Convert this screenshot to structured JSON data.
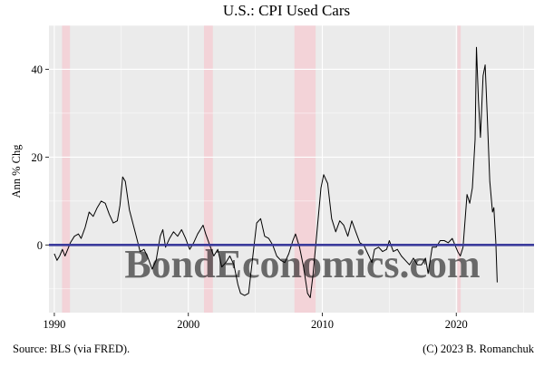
{
  "chart_data": {
    "type": "line",
    "title": "U.S.: CPI Used Cars",
    "xlabel": "",
    "ylabel": "Ann % Chg",
    "xlim": [
      1989.6,
      2025.8
    ],
    "ylim": [
      -15.4,
      50.0
    ],
    "x_ticks": [
      1990,
      2000,
      2010,
      2020
    ],
    "y_ticks": [
      0,
      20,
      40
    ],
    "x_tick_labels": [
      "1990",
      "2000",
      "2010",
      "2020"
    ],
    "y_tick_labels": [
      "0",
      "20",
      "40"
    ],
    "grid": true,
    "legend": "none",
    "reference_line": {
      "y": 0,
      "color": "#3b3b9c"
    },
    "recessions": [
      {
        "start": 1990.58,
        "end": 1991.17
      },
      {
        "start": 2001.17,
        "end": 2001.83
      },
      {
        "start": 2007.92,
        "end": 2009.5
      },
      {
        "start": 2020.08,
        "end": 2020.33
      }
    ],
    "series": [
      {
        "color": "#000000",
        "points": [
          [
            1990.0,
            -2.0
          ],
          [
            1990.2,
            -3.5
          ],
          [
            1990.4,
            -2.5
          ],
          [
            1990.6,
            -1.0
          ],
          [
            1990.8,
            -2.5
          ],
          [
            1991.0,
            -1.0
          ],
          [
            1991.2,
            0.5
          ],
          [
            1991.5,
            2.0
          ],
          [
            1991.8,
            2.5
          ],
          [
            1992.0,
            1.5
          ],
          [
            1992.3,
            4.0
          ],
          [
            1992.6,
            7.5
          ],
          [
            1992.9,
            6.5
          ],
          [
            1993.2,
            8.5
          ],
          [
            1993.5,
            10.0
          ],
          [
            1993.8,
            9.5
          ],
          [
            1994.1,
            7.0
          ],
          [
            1994.4,
            5.0
          ],
          [
            1994.7,
            5.5
          ],
          [
            1994.9,
            9.0
          ],
          [
            1995.1,
            15.5
          ],
          [
            1995.3,
            14.5
          ],
          [
            1995.6,
            8.0
          ],
          [
            1995.9,
            4.5
          ],
          [
            1996.2,
            1.0
          ],
          [
            1996.4,
            -1.5
          ],
          [
            1996.7,
            -1.0
          ],
          [
            1997.0,
            -3.0
          ],
          [
            1997.3,
            -5.5
          ],
          [
            1997.6,
            -3.5
          ],
          [
            1997.9,
            2.0
          ],
          [
            1998.1,
            3.5
          ],
          [
            1998.3,
            -0.5
          ],
          [
            1998.6,
            1.5
          ],
          [
            1998.9,
            3.0
          ],
          [
            1999.2,
            2.0
          ],
          [
            1999.5,
            3.5
          ],
          [
            1999.8,
            1.5
          ],
          [
            2000.1,
            -1.0
          ],
          [
            2000.4,
            0.5
          ],
          [
            2000.7,
            2.5
          ],
          [
            2000.9,
            3.5
          ],
          [
            2001.1,
            4.5
          ],
          [
            2001.3,
            2.5
          ],
          [
            2001.6,
            0.0
          ],
          [
            2001.9,
            -2.5
          ],
          [
            2002.2,
            -1.0
          ],
          [
            2002.5,
            -5.0
          ],
          [
            2002.8,
            -4.0
          ],
          [
            2003.1,
            -2.5
          ],
          [
            2003.4,
            -4.5
          ],
          [
            2003.7,
            -9.0
          ],
          [
            2003.9,
            -11.0
          ],
          [
            2004.2,
            -11.5
          ],
          [
            2004.5,
            -11.0
          ],
          [
            2004.8,
            -3.0
          ],
          [
            2005.1,
            5.0
          ],
          [
            2005.4,
            6.0
          ],
          [
            2005.7,
            2.0
          ],
          [
            2006.0,
            1.5
          ],
          [
            2006.3,
            0.0
          ],
          [
            2006.6,
            -2.5
          ],
          [
            2006.9,
            -3.5
          ],
          [
            2007.2,
            -4.0
          ],
          [
            2007.5,
            -2.0
          ],
          [
            2007.8,
            1.0
          ],
          [
            2008.0,
            2.5
          ],
          [
            2008.3,
            -0.5
          ],
          [
            2008.6,
            -5.0
          ],
          [
            2008.9,
            -11.0
          ],
          [
            2009.1,
            -12.0
          ],
          [
            2009.3,
            -7.0
          ],
          [
            2009.6,
            3.0
          ],
          [
            2009.9,
            13.0
          ],
          [
            2010.1,
            16.0
          ],
          [
            2010.4,
            14.0
          ],
          [
            2010.7,
            6.0
          ],
          [
            2011.0,
            3.0
          ],
          [
            2011.3,
            5.5
          ],
          [
            2011.6,
            4.5
          ],
          [
            2011.9,
            2.0
          ],
          [
            2012.2,
            5.5
          ],
          [
            2012.5,
            3.0
          ],
          [
            2012.8,
            0.5
          ],
          [
            2013.1,
            0.0
          ],
          [
            2013.4,
            -2.0
          ],
          [
            2013.7,
            -4.0
          ],
          [
            2013.9,
            -1.0
          ],
          [
            2014.2,
            -0.5
          ],
          [
            2014.5,
            -1.5
          ],
          [
            2014.8,
            -1.0
          ],
          [
            2015.0,
            1.0
          ],
          [
            2015.3,
            -1.5
          ],
          [
            2015.6,
            -1.0
          ],
          [
            2015.9,
            -2.5
          ],
          [
            2016.2,
            -3.5
          ],
          [
            2016.5,
            -4.5
          ],
          [
            2016.8,
            -3.0
          ],
          [
            2017.1,
            -4.5
          ],
          [
            2017.4,
            -4.5
          ],
          [
            2017.7,
            -3.0
          ],
          [
            2017.9,
            -6.5
          ],
          [
            2018.2,
            -0.5
          ],
          [
            2018.5,
            -0.5
          ],
          [
            2018.8,
            1.0
          ],
          [
            2019.1,
            1.0
          ],
          [
            2019.4,
            0.5
          ],
          [
            2019.7,
            1.5
          ],
          [
            2019.9,
            0.0
          ],
          [
            2020.1,
            -1.5
          ],
          [
            2020.3,
            -2.5
          ],
          [
            2020.5,
            -0.5
          ],
          [
            2020.8,
            11.5
          ],
          [
            2021.0,
            9.5
          ],
          [
            2021.2,
            13.0
          ],
          [
            2021.4,
            24.0
          ],
          [
            2021.5,
            45.0
          ],
          [
            2021.65,
            33.0
          ],
          [
            2021.8,
            24.5
          ],
          [
            2022.0,
            38.5
          ],
          [
            2022.15,
            41.0
          ],
          [
            2022.3,
            30.0
          ],
          [
            2022.5,
            14.5
          ],
          [
            2022.7,
            7.5
          ],
          [
            2022.8,
            8.5
          ],
          [
            2022.95,
            0.5
          ],
          [
            2023.05,
            -8.5
          ]
        ]
      }
    ]
  },
  "footer": {
    "source": "Source: BLS (via FRED).",
    "credit": "(C) 2023 B. Romanchuk"
  },
  "watermark": {
    "text": "BondEconomics.com"
  },
  "colors": {
    "panel_background": "#ebebeb",
    "grid_major": "#ffffff",
    "recession_fill": "#f4d0d6",
    "series_line": "#000000",
    "zero_line": "#3b3b9c"
  }
}
